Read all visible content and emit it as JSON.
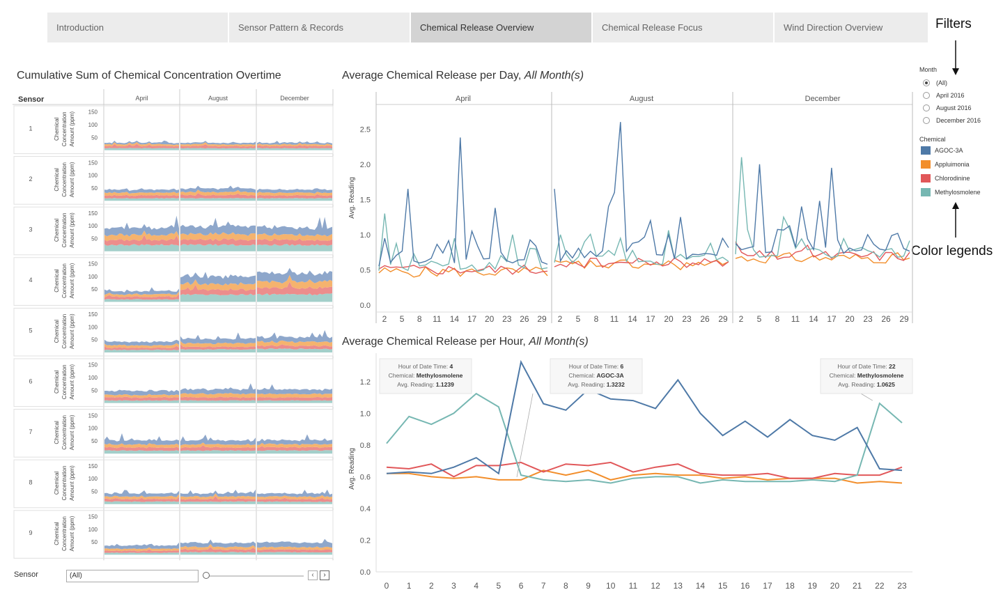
{
  "tabs": [
    {
      "label": "Introduction",
      "active": false
    },
    {
      "label": "Sensor Pattern & Records",
      "active": false
    },
    {
      "label": "Chemical Release Overview",
      "active": true
    },
    {
      "label": "Chemical Release Focus",
      "active": false
    },
    {
      "label": "Wind Direction Overview",
      "active": false
    }
  ],
  "annotations": {
    "filters": "Filters",
    "color_legends": "Color legends"
  },
  "filters": {
    "month_title": "Month",
    "options": [
      "(All)",
      "April 2016",
      "August 2016",
      "December 2016"
    ],
    "selected": "(All)"
  },
  "legend": {
    "title": "Chemical",
    "items": [
      {
        "name": "AGOC-3A",
        "color": "#4e79a7"
      },
      {
        "name": "Appluimonia",
        "color": "#f28e2b"
      },
      {
        "name": "Chlorodinine",
        "color": "#e15759"
      },
      {
        "name": "Methylosmolene",
        "color": "#76b7b2"
      }
    ]
  },
  "colors": {
    "agoc": "#4e79a7",
    "appl": "#f28e2b",
    "chlo": "#e15759",
    "meth": "#76b7b2",
    "meth_fill": "#a3cfca",
    "agoc_fill": "#8ea7cb",
    "appl_fill": "#f5b36e",
    "chlo_fill": "#ec8d8c"
  },
  "cumulative": {
    "title": "Cumulative Sum of Chemical Concentration Overtime",
    "row_header": "Sensor",
    "months": [
      "April",
      "August",
      "December"
    ],
    "sensors": [
      "1",
      "2",
      "3",
      "4",
      "5",
      "6",
      "7",
      "8",
      "9"
    ],
    "axis_label_lines": [
      "Chemical",
      "Concentration",
      "Amount (ppm)"
    ],
    "ticks": [
      "150",
      "100",
      "50"
    ],
    "levels": [
      [
        [
          8,
          8,
          7,
          6
        ],
        [
          8,
          8,
          7,
          6
        ],
        [
          8,
          8,
          7,
          6
        ]
      ],
      [
        [
          10,
          11,
          11,
          12
        ],
        [
          10,
          12,
          12,
          14
        ],
        [
          10,
          11,
          11,
          12
        ]
      ],
      [
        [
          25,
          20,
          20,
          28
        ],
        [
          25,
          20,
          22,
          30
        ],
        [
          25,
          20,
          20,
          28
        ]
      ],
      [
        [
          10,
          10,
          10,
          12
        ],
        [
          28,
          20,
          22,
          30
        ],
        [
          30,
          25,
          25,
          32
        ]
      ],
      [
        [
          10,
          8,
          10,
          14
        ],
        [
          12,
          10,
          14,
          18
        ],
        [
          14,
          12,
          16,
          18
        ]
      ],
      [
        [
          10,
          12,
          10,
          16
        ],
        [
          10,
          12,
          14,
          18
        ],
        [
          10,
          12,
          14,
          18
        ]
      ],
      [
        [
          12,
          12,
          12,
          16
        ],
        [
          12,
          12,
          12,
          16
        ],
        [
          12,
          12,
          12,
          16
        ]
      ],
      [
        [
          10,
          10,
          10,
          12
        ],
        [
          10,
          10,
          10,
          12
        ],
        [
          10,
          10,
          10,
          12
        ]
      ],
      [
        [
          8,
          8,
          8,
          12
        ],
        [
          10,
          10,
          10,
          16
        ],
        [
          10,
          10,
          10,
          18
        ]
      ]
    ],
    "sensor_filter": {
      "label": "Sensor",
      "value": "(All)"
    }
  },
  "daily": {
    "title_main": "Average Chemical Release per Day,",
    "title_italic": "All Month(s)",
    "ylabel": "Avg. Reading",
    "months": [
      "April",
      "August",
      "December"
    ],
    "yticks": [
      "2.5",
      "2.0",
      "1.5",
      "1.0",
      "0.5",
      "0.0"
    ],
    "xticks": [
      "2",
      "5",
      "8",
      "11",
      "14",
      "17",
      "20",
      "23",
      "26",
      "29"
    ]
  },
  "chart_data": {
    "type": "line",
    "title": "Average Chemical Release per Hour, All Month(s)",
    "xlabel": "",
    "ylabel": "Avg. Reading",
    "ylim": [
      0,
      1.3
    ],
    "x": [
      0,
      1,
      2,
      3,
      4,
      5,
      6,
      7,
      8,
      9,
      10,
      11,
      12,
      13,
      14,
      15,
      16,
      17,
      18,
      19,
      20,
      21,
      22,
      23
    ],
    "yticks": [
      "1.2",
      "1.0",
      "0.8",
      "0.6",
      "0.4",
      "0.2",
      "0.0"
    ],
    "series": [
      {
        "name": "AGOC-3A",
        "color": "#4e79a7",
        "values": [
          0.62,
          0.63,
          0.62,
          0.66,
          0.72,
          0.62,
          1.3232,
          1.06,
          1.02,
          1.15,
          1.09,
          1.08,
          1.03,
          1.21,
          1.0,
          0.86,
          0.95,
          0.85,
          0.96,
          0.86,
          0.83,
          0.91,
          0.65,
          0.64
        ]
      },
      {
        "name": "Appluimonia",
        "color": "#f28e2b",
        "values": [
          0.62,
          0.62,
          0.6,
          0.59,
          0.6,
          0.58,
          0.58,
          0.64,
          0.61,
          0.64,
          0.58,
          0.61,
          0.62,
          0.61,
          0.61,
          0.59,
          0.6,
          0.58,
          0.59,
          0.59,
          0.59,
          0.56,
          0.57,
          0.56
        ]
      },
      {
        "name": "Chlorodinine",
        "color": "#e15759",
        "values": [
          0.66,
          0.65,
          0.68,
          0.6,
          0.67,
          0.67,
          0.69,
          0.63,
          0.68,
          0.67,
          0.69,
          0.63,
          0.66,
          0.68,
          0.62,
          0.61,
          0.61,
          0.62,
          0.59,
          0.59,
          0.62,
          0.61,
          0.61,
          0.66
        ]
      },
      {
        "name": "Methylosmolene",
        "color": "#76b7b2",
        "values": [
          0.81,
          0.98,
          0.93,
          1.0,
          1.1239,
          1.04,
          0.61,
          0.58,
          0.57,
          0.58,
          0.56,
          0.59,
          0.6,
          0.6,
          0.56,
          0.58,
          0.57,
          0.57,
          0.57,
          0.58,
          0.57,
          0.61,
          1.0625,
          0.94
        ]
      }
    ],
    "tooltips": [
      {
        "hour": "4",
        "chemical": "Methylosmolene",
        "reading": "1.1239"
      },
      {
        "hour": "6",
        "chemical": "AGOC-3A",
        "reading": "1.3232"
      },
      {
        "hour": "22",
        "chemical": "Methylosmolene",
        "reading": "1.0625"
      }
    ],
    "tooltip_labels": {
      "hour": "Hour of Date Time:",
      "chemical": "Chemical:",
      "reading": "Avg. Reading:"
    },
    "title_main": "Average Chemical Release per Hour,",
    "title_italic": "All Month(s)"
  }
}
